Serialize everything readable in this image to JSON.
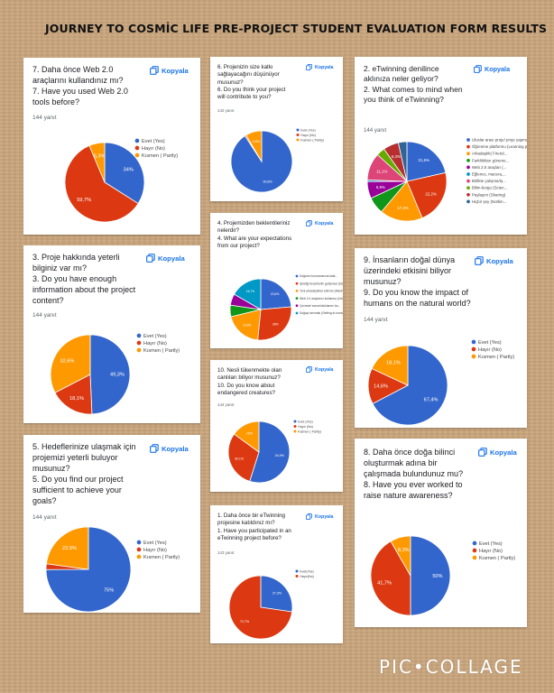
{
  "title": "JOURNEY TO COSMİC LIFE PRE-PROJECT STUDENT EVALUATION FORM RESULTS",
  "copy_label": "Kopyala",
  "watermark": "PIC•COLLAGE",
  "colors": {
    "blue": "#3366cc",
    "red": "#dc3912",
    "orange": "#ff9900",
    "green": "#109618",
    "purple": "#990099",
    "teal": "#0099c6",
    "pink": "#dd4477",
    "lime": "#66aa00",
    "darkred": "#b82e2e",
    "navy": "#316395"
  },
  "cards": [
    {
      "id": "q7",
      "question": [
        "7. Daha önce Web 2.0",
        "araçlarını kullandınız mı?",
        "7. Have you used Web 2.0",
        "tools before?"
      ],
      "responses": "144 yanıt",
      "chart_data": {
        "type": "pie",
        "title": "7. Daha önce Web 2.0 araçlarını kullandınız mı? / Have you used Web 2.0 tools before?",
        "categories": [
          "Evet (Yes)",
          "Hayır (No)",
          "Kısmen ( Partly)"
        ],
        "values": [
          34,
          59.7,
          6.3
        ],
        "slice_labels": [
          "34%",
          "59,7%",
          "6,3%"
        ],
        "legend_position": "right"
      }
    },
    {
      "id": "q6",
      "question": [
        "6. Projenizin size katkı",
        "sağlayacağını düşünüyor",
        "musunuz?",
        "6. Do you think your project",
        "will contribute to you?"
      ],
      "responses": "142 yanıt",
      "chart_data": {
        "type": "pie",
        "title": "6. Projenizin size katkı sağlayacağını düşünüyor musunuz? / Do you think your project will contribute to you?",
        "categories": [
          "Evet (Yes)",
          "Hayır (No)",
          "Kısmen ( Partly)"
        ],
        "values": [
          90.8,
          0.7,
          8.5
        ],
        "slice_labels": [
          "90,8%",
          "",
          "8,5%"
        ],
        "legend_position": "right"
      }
    },
    {
      "id": "q2",
      "question": [
        "2. eTwinning denilince",
        "aklınıza neler geliyor?",
        "2. What comes to mind when",
        "you think of eTwinning?"
      ],
      "responses": "144 yanıt",
      "chart_data": {
        "type": "pie",
        "title": "2. eTwinning denilince aklınıza neler geliyor? / What comes to mind when you think of eTwinning?",
        "categories": [
          "Uluslar arası proje/ proje yapma (Inter...",
          "Öğrenme platformu (Learning platform)",
          "Arkadaşlık( Friend...",
          "Farklılıkları göreme...",
          "Web 2.0 araçları (...",
          "Eğlence, macera,...",
          "Birlikte çalışma/Iş...",
          "Bilim-kurgu (Scien...",
          "Paylaşım (Sharing)",
          "Hiçbir şey (Nothin..."
        ],
        "values": [
          21.5,
          22.2,
          17.4,
          6.9,
          6.9,
          0.7,
          11.1,
          3.5,
          6.3,
          3.5
        ],
        "slice_labels": [
          "21,5%",
          "22,2%",
          "17,4%",
          "",
          "6,9%",
          "",
          "11,1%",
          "",
          "6,3%",
          ""
        ],
        "legend_position": "right"
      }
    },
    {
      "id": "q4",
      "question": [
        "4. Projemizden beklentileriniz",
        "nelerdir?",
        "4. What are your expectations",
        "from our project?"
      ],
      "responses": "",
      "chart_data": {
        "type": "pie",
        "title": "4. Projemizden beklentileriniz nelerdir? / What are your expectations from our project?",
        "categories": [
          "Doğanın korunmasına katk...",
          "İçbeliği becerilerim gelişmesi (Devel...",
          "Yeni arkadaşlıklar edinme (Making n...",
          "Web 2.0 araçlarını kullanma (Using...",
          "Çevresel sorumluluklarımı ka...",
          "Doğayı tanımak (Getting to know..."
        ],
        "values": [
          23.6,
          28,
          19.6,
          6.1,
          6,
          16.7
        ],
        "slice_labels": [
          "23,6%",
          "28%",
          "19,6%",
          "",
          "",
          "16,7%"
        ],
        "legend_position": "right"
      }
    },
    {
      "id": "q3",
      "question": [
        "3. Proje hakkında yeterli",
        "bilginiz var mı?",
        "3. Do you have enough",
        "information about the project",
        "content?"
      ],
      "responses": "144 yanıt",
      "chart_data": {
        "type": "pie",
        "title": "3. Proje hakkında yeterli bilginiz var mı? / Do you have enough information about the project content?",
        "categories": [
          "Evet (Yes)",
          "Hayır (No)",
          "Kısmen ( Partly)"
        ],
        "values": [
          49.3,
          18.1,
          32.6
        ],
        "slice_labels": [
          "49,3%",
          "18,1%",
          "32,6%"
        ],
        "legend_position": "right"
      }
    },
    {
      "id": "q9",
      "question": [
        "9. İnsanların doğal dünya",
        "üzerindeki etkisini biliyor",
        "musunuz?",
        "9. Do you know the impact of",
        "humans on the natural world?"
      ],
      "responses": "144 yanıt",
      "chart_data": {
        "type": "pie",
        "title": "9. İnsanların doğal dünya üzerindeki etkisini biliyor musunuz? / Do you know the impact of humans on the natural world?",
        "categories": [
          "Evet (Yes)",
          "Hayır (No)",
          "Kısmen ( Partly)"
        ],
        "values": [
          67.4,
          14.6,
          18.1
        ],
        "slice_labels": [
          "67,4%",
          "14,6%",
          "18,1%"
        ],
        "legend_position": "right"
      }
    },
    {
      "id": "q10",
      "question": [
        "10. Nesli tükenmekte olan",
        "canlıları biliyor musunuz?",
        "10. Do you know about",
        "endangered creatures?"
      ],
      "responses": "144 yanıt",
      "chart_data": {
        "type": "pie",
        "title": "10. Nesli tükenmekte olan canlıları biliyor musunuz? / Do you know about endangered creatures?",
        "categories": [
          "Evet (Yes)",
          "Hayır (No)",
          "Kısmen ( Partly)"
        ],
        "values": [
          54.9,
          30.1,
          15
        ],
        "slice_labels": [
          "54,9%",
          "30,1%",
          "15%"
        ],
        "legend_position": "right"
      }
    },
    {
      "id": "q5",
      "question": [
        "5. Hedeflerinize ulaşmak için",
        "projemizi yeterli buluyor",
        "musunuz?",
        "5. Do you find our project",
        "sufficient to achieve your",
        "goals?"
      ],
      "responses": "144 yanıt",
      "chart_data": {
        "type": "pie",
        "title": "5. Hedeflerinize ulaşmak için projemizi yeterli buluyor musunuz? / Do you find our project sufficient to achieve your goals?",
        "categories": [
          "Evet (Yes)",
          "Hayır (No)",
          "Kısmen ( Partly)"
        ],
        "values": [
          75,
          2.2,
          22.9
        ],
        "slice_labels": [
          "75%",
          "",
          "22,9%"
        ],
        "legend_position": "right"
      }
    },
    {
      "id": "q1",
      "question": [
        "1. Daha önce bir eTwinning",
        "projesine katıldınız mı?",
        "1. Have you participated in an",
        "eTwinning project before?"
      ],
      "responses": "143 yanıt",
      "chart_data": {
        "type": "pie",
        "title": "1. Daha önce bir eTwinning projesine katıldınız mı? / Have you participated in an eTwinning project before?",
        "categories": [
          "Evet(Yes)",
          "Hayır(No)"
        ],
        "values": [
          27.3,
          72.7
        ],
        "slice_labels": [
          "27,3%",
          "72,7%"
        ],
        "legend_position": "right"
      }
    },
    {
      "id": "q8",
      "question": [
        "8. Daha önce doğa bilinci",
        "oluşturmak adına bir",
        "çalışmada bulundunuz mu?",
        "8. Have you ever worked to",
        "raise nature awareness?"
      ],
      "responses": "",
      "chart_data": {
        "type": "pie",
        "title": "8. Daha önce doğa bilinci oluşturmak adına bir çalışmada bulundunuz mu? / Have you ever worked to raise nature awareness?",
        "categories": [
          "Evet (Yes)",
          "Hayır (No)",
          "Kısmen ( Partly)"
        ],
        "values": [
          50,
          41.7,
          8.3
        ],
        "slice_labels": [
          "50%",
          "41,7%",
          "8,3%"
        ],
        "legend_position": "right"
      }
    }
  ]
}
